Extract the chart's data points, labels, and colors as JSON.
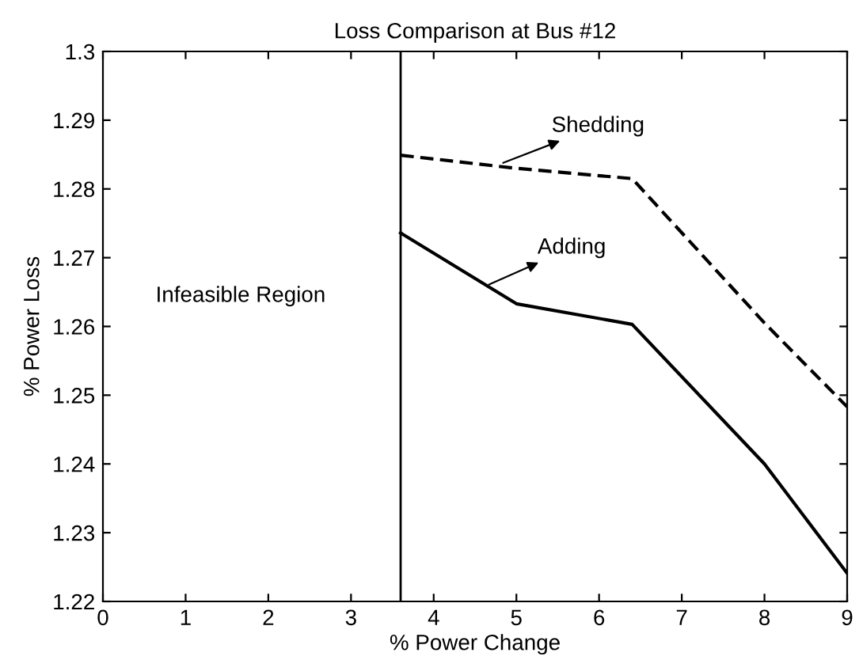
{
  "chart_data": {
    "type": "line",
    "title": "Loss Comparison at Bus #12",
    "xlabel": "% Power Change",
    "ylabel": "% Power Loss",
    "x": [
      3.6,
      5,
      6.4,
      8,
      9
    ],
    "series": [
      {
        "color": "#000000",
        "line_style": "solid",
        "values": [
          1.2736,
          1.2633,
          1.2603,
          1.24,
          1.2241
        ]
      },
      {
        "color": "#000000",
        "line_style": "dashed",
        "values": [
          1.2849,
          1.283,
          1.2815,
          1.2605,
          1.2483
        ]
      }
    ],
    "xlim": [
      0,
      9
    ],
    "ylim": [
      1.22,
      1.3
    ],
    "xticks": [
      0,
      1,
      2,
      3,
      4,
      5,
      6,
      7,
      8,
      9
    ],
    "yticks": [
      1.22,
      1.23,
      1.24,
      1.25,
      1.26,
      1.27,
      1.28,
      1.29,
      1.3
    ],
    "ref_lines": [
      {
        "axis": "x",
        "value": 3.6,
        "color": "#000000"
      }
    ],
    "annotations": [
      {
        "text": "Adding",
        "x": 4.67,
        "y": 1.2661
      },
      {
        "text": "Shedding",
        "x": 4.84,
        "y": 1.2838
      },
      "Infeasible Region"
    ],
    "grid": false,
    "legend": false,
    "marker": "none"
  }
}
